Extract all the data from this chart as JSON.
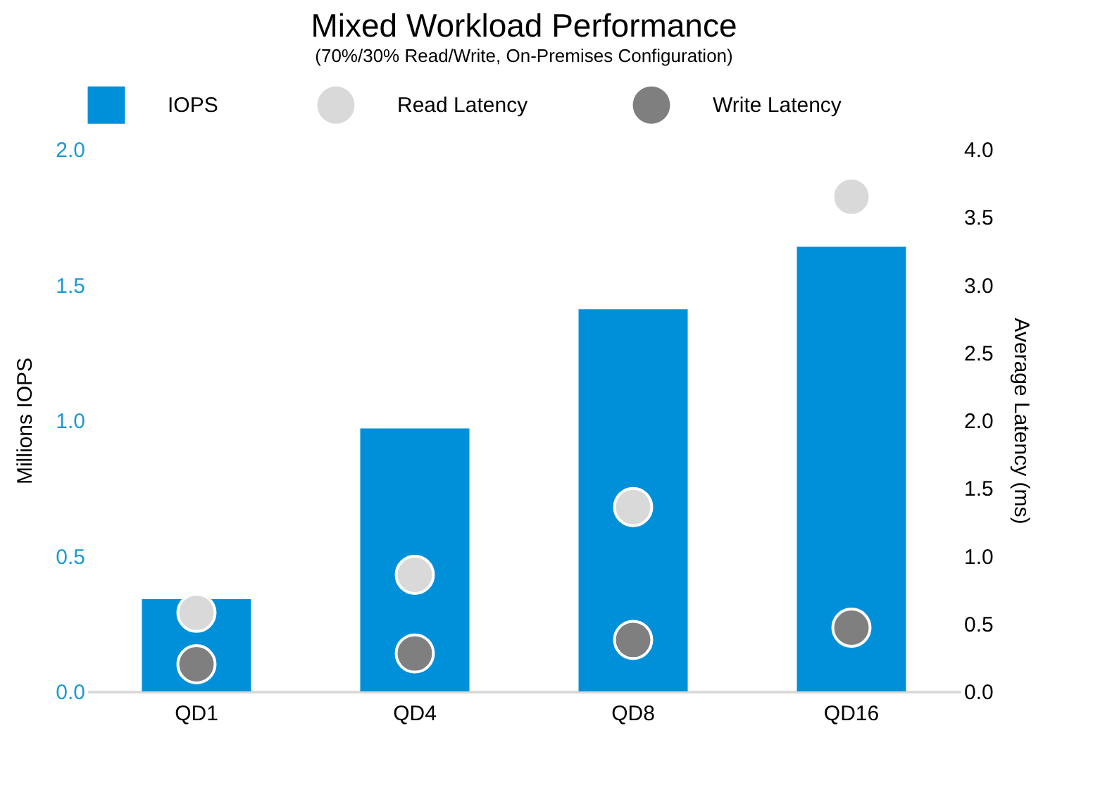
{
  "chart_data": {
    "type": "bar",
    "title": "Mixed Workload Performance",
    "subtitle": "(70%/30% Read/Write, On-Premises Configuration)",
    "ylabel": "Millions IOPS",
    "y2label": "Average Latency (ms)",
    "categories": [
      "QD1",
      "QD4",
      "QD8",
      "QD16"
    ],
    "series": [
      {
        "name": "IOPS",
        "color": "#0090d9",
        "values": [
          0.34,
          0.97,
          1.41,
          1.64
        ]
      },
      {
        "name": "Read  Latency",
        "type": "scatter",
        "axis": "y2",
        "color": "#d9d9d9",
        "values": [
          0.58,
          0.86,
          1.36,
          3.65
        ]
      },
      {
        "name": "Write Latency",
        "type": "scatter",
        "axis": "y2",
        "color": "#7f7f7f",
        "values": [
          0.2,
          0.28,
          0.38,
          0.47
        ]
      }
    ],
    "ylim": [
      0,
      2
    ],
    "yticks": [
      {
        "value": 0,
        "label": "0.0"
      },
      {
        "value": 0.5,
        "label": "0.5"
      },
      {
        "value": 1,
        "label": "1.0"
      },
      {
        "value": 1.5,
        "label": "1.5"
      },
      {
        "value": 2,
        "label": "2.0"
      }
    ],
    "y2lim": [
      0,
      4
    ],
    "y2ticks": [
      {
        "value": 0,
        "label": "0.0"
      },
      {
        "value": 0.5,
        "label": "0.5"
      },
      {
        "value": 1,
        "label": "1.0"
      },
      {
        "value": 1.5,
        "label": "1.5"
      },
      {
        "value": 2,
        "label": "2.0"
      },
      {
        "value": 2.5,
        "label": "2.5"
      },
      {
        "value": 3,
        "label": "3.0"
      },
      {
        "value": 3.5,
        "label": "3.5"
      },
      {
        "value": 4,
        "label": "4.0"
      }
    ],
    "legend": "top",
    "marker": "circle",
    "grid": false
  }
}
